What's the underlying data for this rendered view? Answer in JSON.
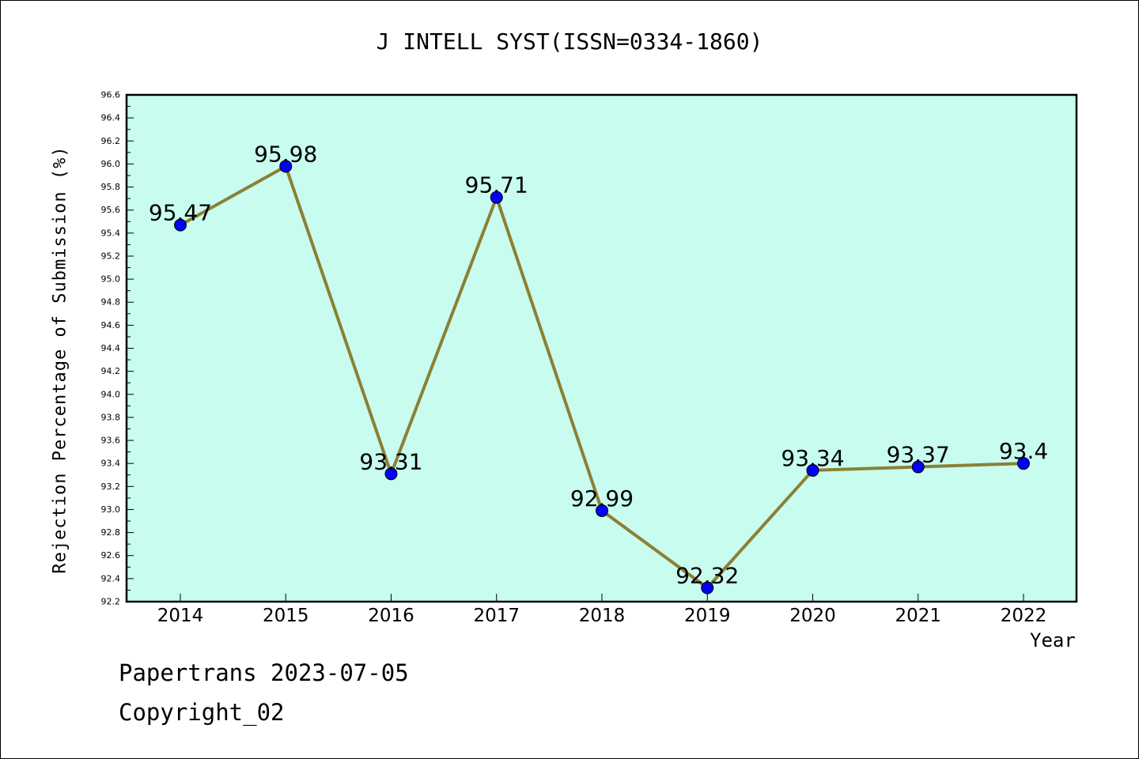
{
  "chart_data": {
    "type": "line",
    "title": "J INTELL SYST(ISSN=0334-1860)",
    "xlabel": "Year",
    "ylabel": "Rejection Percentage of Submission (%)",
    "categories": [
      "2014",
      "2015",
      "2016",
      "2017",
      "2018",
      "2019",
      "2020",
      "2021",
      "2022"
    ],
    "series": [
      {
        "values": [
          95.47,
          95.98,
          93.31,
          95.71,
          92.99,
          92.32,
          93.34,
          93.37,
          93.4
        ],
        "labels": [
          "95.47",
          "95.98",
          "93.31",
          "95.71",
          "92.99",
          "92.32",
          "93.34",
          "93.37",
          "93.4"
        ]
      }
    ],
    "ylim": [
      92.2,
      96.6
    ],
    "yticks": [
      "92.2",
      "92.4",
      "92.6",
      "92.8",
      "93.0",
      "93.2",
      "93.4",
      "93.6",
      "93.8",
      "94.0",
      "94.2",
      "94.4",
      "94.6",
      "94.8",
      "95.0",
      "95.2",
      "95.4",
      "95.6",
      "95.8",
      "96.0",
      "96.2",
      "96.4",
      "96.6"
    ],
    "grid": false,
    "colors": {
      "plot_background": "#c8fcee",
      "line": "#8b8035",
      "marker": "#0000ff"
    }
  },
  "footer": {
    "line1": "Papertrans 2023-07-05",
    "line2": "Copyright_02"
  }
}
